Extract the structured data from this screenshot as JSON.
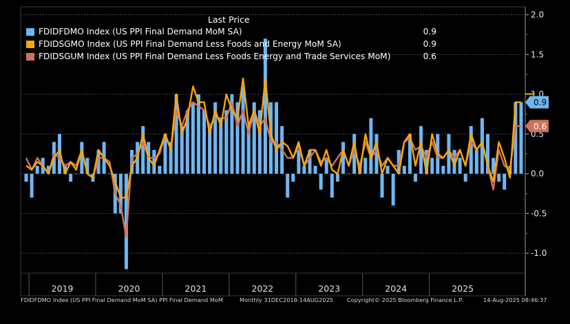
{
  "chart_data": {
    "type": "bar+line",
    "title": "",
    "legend_header": "Last Price",
    "xlabel": "",
    "ylabel": "",
    "ylim": [
      -1.25,
      2.1
    ],
    "y_ticks": [
      {
        "value": 2.0,
        "label": "2.0"
      },
      {
        "value": 1.5,
        "label": "1.5"
      },
      {
        "value": 1.0,
        "label": "1.0"
      },
      {
        "value": 0.5,
        "label": "0.5"
      },
      {
        "value": 0.0,
        "label": "0.0"
      },
      {
        "value": -0.5,
        "label": "-0.5"
      },
      {
        "value": -1.0,
        "label": "-1.0"
      }
    ],
    "x_start": "2018-12",
    "x_end": "2025-07",
    "year_labels": [
      "2019",
      "2020",
      "2021",
      "2022",
      "2023",
      "2024",
      "2025"
    ],
    "series": [
      {
        "name": "FDIDFDMO Index (US PPI Final Demand MoM SA)",
        "type": "bar",
        "color": "#6fb6f2",
        "last_value": "0.9",
        "values": [
          -0.1,
          -0.3,
          0.1,
          0.2,
          0.1,
          0.4,
          0.5,
          0.1,
          -0.1,
          0.0,
          0.4,
          0.2,
          -0.1,
          0.3,
          0.4,
          0.0,
          -0.5,
          -0.5,
          -1.2,
          0.3,
          0.4,
          0.6,
          0.4,
          0.3,
          0.1,
          0.5,
          0.4,
          1.0,
          0.6,
          0.8,
          0.9,
          1.0,
          0.8,
          0.6,
          0.9,
          0.7,
          0.8,
          1.0,
          0.9,
          1.1,
          0.6,
          0.9,
          0.8,
          1.7,
          0.9,
          0.9,
          0.6,
          -0.3,
          -0.1,
          0.3,
          0.1,
          0.3,
          0.1,
          -0.2,
          0.2,
          -0.3,
          -0.1,
          0.4,
          0.0,
          0.5,
          0.1,
          0.2,
          0.7,
          0.5,
          -0.3,
          0.1,
          -0.4,
          0.3,
          0.1,
          0.5,
          -0.1,
          0.6,
          0.3,
          0.2,
          0.5,
          0.1,
          0.5,
          0.3,
          0.2,
          -0.1,
          0.6,
          0.3,
          0.7,
          0.5,
          0.2,
          -0.1,
          -0.2,
          0.1,
          0.9,
          0.9
        ]
      },
      {
        "name": "FDIDSGMO Index (US PPI Final Demand Less Foods and Energy MoM SA)",
        "type": "line",
        "color": "#f7a70c",
        "last_value": "0.9",
        "values": [
          0.1,
          0.05,
          0.15,
          0.1,
          0.0,
          0.2,
          0.3,
          0.0,
          0.15,
          0.05,
          0.3,
          0.0,
          -0.05,
          0.3,
          0.2,
          0.1,
          -0.1,
          -0.3,
          -0.3,
          0.1,
          0.2,
          0.5,
          0.2,
          0.1,
          0.3,
          0.5,
          0.3,
          1.0,
          0.5,
          0.7,
          1.1,
          0.9,
          0.9,
          0.5,
          0.8,
          0.6,
          1.0,
          0.8,
          0.7,
          1.2,
          0.6,
          0.8,
          0.5,
          1.2,
          0.5,
          0.3,
          0.4,
          0.35,
          0.2,
          0.4,
          0.1,
          0.3,
          0.3,
          0.1,
          0.3,
          0.05,
          0.0,
          0.3,
          0.1,
          0.4,
          0.0,
          0.5,
          0.2,
          0.4,
          0.0,
          0.2,
          0.1,
          0.0,
          0.4,
          0.5,
          0.1,
          0.4,
          0.0,
          0.5,
          0.25,
          0.2,
          0.3,
          0.1,
          0.3,
          0.1,
          0.5,
          0.3,
          0.4,
          0.1,
          -0.1,
          0.4,
          0.2,
          -0.05,
          0.9,
          0.9
        ]
      },
      {
        "name": "FDIDSGUM Index (US PPI Final Demand Less Foods Energy and Trade Services MoM)",
        "type": "line",
        "color": "#d0715d",
        "last_value": "0.6",
        "values": [
          0.2,
          0.05,
          0.2,
          0.1,
          0.0,
          0.25,
          0.2,
          0.1,
          0.15,
          0.1,
          0.3,
          0.0,
          -0.05,
          0.2,
          0.2,
          0.15,
          -0.25,
          -0.4,
          -0.8,
          0.2,
          0.25,
          0.4,
          0.2,
          0.2,
          0.25,
          0.5,
          0.3,
          0.8,
          0.6,
          0.8,
          0.9,
          0.85,
          0.8,
          0.6,
          0.7,
          0.7,
          0.7,
          0.9,
          0.6,
          0.8,
          0.5,
          0.8,
          0.6,
          0.7,
          0.4,
          0.4,
          0.3,
          0.2,
          0.2,
          0.35,
          0.1,
          0.2,
          0.3,
          0.15,
          0.2,
          0.1,
          0.2,
          0.3,
          0.1,
          0.3,
          0.1,
          0.4,
          0.2,
          0.3,
          0.1,
          0.2,
          0.1,
          0.1,
          0.4,
          0.45,
          0.3,
          0.35,
          0.2,
          0.4,
          0.2,
          0.2,
          0.3,
          0.2,
          0.3,
          0.1,
          0.4,
          0.3,
          0.4,
          0.1,
          -0.2,
          0.3,
          0.1,
          0.05,
          0.6,
          0.6
        ]
      }
    ]
  },
  "footer": {
    "description": "FDIDFDMO Index (US PPI Final Demand MoM SA) PPI Final Demand MoM",
    "period": "Monthly 31DEC2018-14AUG2025",
    "copyright": "Copyright© 2025 Bloomberg Finance L.P.",
    "timestamp": "14-Aug-2025 08:46:37"
  }
}
